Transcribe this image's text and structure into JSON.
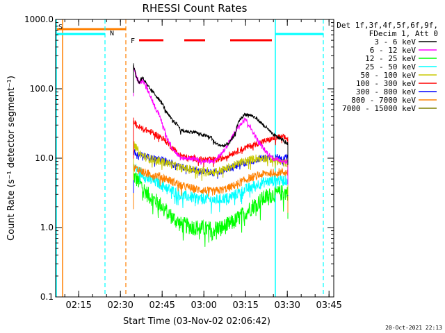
{
  "chart_data": {
    "type": "line",
    "title": "RHESSI Count Rates",
    "xlabel": "Start Time (03-Nov-02 02:06:42)",
    "ylabel": "Count Rate (s⁻¹ detector segment⁻¹)",
    "yscale": "log",
    "ylim": [
      0.1,
      1000
    ],
    "y_ticks": [
      "0.1",
      "1.0",
      "10.0",
      "100.0",
      "1000.0"
    ],
    "xlim_minutes": [
      0,
      100
    ],
    "x_ticks": [
      {
        "label": "02:15",
        "minute": 8.3
      },
      {
        "label": "02:30",
        "minute": 23.3
      },
      {
        "label": "02:45",
        "minute": 38.3
      },
      {
        "label": "03:00",
        "minute": 53.3
      },
      {
        "label": "03:15",
        "minute": 68.3
      },
      {
        "label": "03:30",
        "minute": 83.3
      },
      {
        "label": "03:45",
        "minute": 98.3
      }
    ],
    "legend": {
      "header": [
        "Det 1f,3f,4f,5f,6f,9f,",
        "FDecim 1, Att 0"
      ],
      "placement": "right"
    },
    "series": [
      {
        "name": "3 - 6 keV",
        "color": "#000000",
        "x": [
          28,
          29,
          30,
          31,
          32,
          33,
          35,
          38,
          40,
          42,
          44,
          45,
          48,
          50,
          52,
          54,
          56,
          57,
          58,
          60,
          62,
          64,
          66,
          68,
          70,
          72,
          74,
          76,
          78,
          80,
          82,
          83.5
        ],
        "values": [
          220,
          150,
          120,
          150,
          130,
          110,
          90,
          65,
          45,
          35,
          30,
          25,
          24,
          24,
          22,
          21,
          20,
          17,
          16,
          15,
          16,
          20,
          35,
          43,
          42,
          38,
          32,
          27,
          22,
          20,
          18,
          16
        ]
      },
      {
        "name": "6 - 12 keV",
        "color": "#ff00ff",
        "x": [
          28,
          29,
          30,
          31,
          32,
          33,
          35,
          38,
          40,
          42,
          44,
          45,
          48,
          50,
          52,
          54,
          56,
          57,
          58,
          60,
          62,
          64,
          66,
          68,
          70,
          72,
          74,
          76,
          78,
          80,
          82,
          83.5
        ],
        "values": [
          210,
          150,
          120,
          140,
          120,
          100,
          65,
          35,
          20,
          14,
          11,
          10,
          10,
          10,
          9,
          9,
          9,
          9,
          10,
          12,
          16,
          22,
          30,
          38,
          28,
          20,
          15,
          12,
          10,
          9.5,
          9,
          9
        ]
      },
      {
        "name": "12 - 25 keV",
        "color": "#00ff00",
        "x": [
          28,
          29,
          30,
          31,
          32,
          33,
          35,
          38,
          40,
          42,
          44,
          45,
          48,
          50,
          52,
          54,
          56,
          57,
          58,
          60,
          62,
          64,
          66,
          68,
          70,
          72,
          74,
          76,
          78,
          80,
          82,
          83.5
        ],
        "values": [
          5.5,
          5,
          4.5,
          4,
          3.5,
          3,
          2.6,
          2.1,
          1.7,
          1.4,
          1.2,
          1.1,
          1.05,
          1,
          1,
          0.95,
          0.95,
          0.95,
          1,
          1,
          1.1,
          1.2,
          1.4,
          1.6,
          1.9,
          2.2,
          2.5,
          2.8,
          3,
          3.1,
          3.2,
          3.2
        ]
      },
      {
        "name": "25 - 50 keV",
        "color": "#00ffff",
        "x": [
          28,
          29,
          30,
          31,
          32,
          33,
          35,
          38,
          40,
          42,
          44,
          45,
          48,
          50,
          52,
          54,
          56,
          57,
          58,
          60,
          62,
          64,
          66,
          68,
          70,
          72,
          74,
          76,
          78,
          80,
          82,
          83.5
        ],
        "values": [
          7.5,
          7,
          6.5,
          6,
          5.5,
          5,
          4.7,
          4.2,
          3.8,
          3.4,
          3.1,
          2.9,
          2.8,
          2.7,
          2.6,
          2.6,
          2.5,
          2.5,
          2.5,
          2.6,
          2.7,
          2.9,
          3.2,
          3.5,
          3.8,
          4.1,
          4.4,
          4.6,
          4.7,
          4.8,
          4.8,
          4.8
        ]
      },
      {
        "name": "50 - 100 keV",
        "color": "#c8c800",
        "x": [
          28,
          29,
          30,
          31,
          32,
          33,
          35,
          38,
          40,
          42,
          44,
          45,
          48,
          50,
          52,
          54,
          56,
          57,
          58,
          60,
          62,
          64,
          66,
          68,
          70,
          72,
          74,
          76,
          78,
          80,
          82,
          83.5
        ],
        "values": [
          16,
          14,
          12,
          11,
          10.5,
          10,
          9.5,
          9,
          8.5,
          8,
          7.5,
          7.2,
          7,
          6.8,
          6.6,
          6.5,
          6.4,
          6.4,
          6.5,
          6.8,
          7.2,
          7.8,
          8.5,
          9,
          9.5,
          10,
          10,
          10,
          9.5,
          9,
          8.5,
          8.5
        ]
      },
      {
        "name": "100 - 300 keV",
        "color": "#ff0000",
        "x": [
          28,
          29,
          30,
          31,
          32,
          33,
          35,
          38,
          40,
          42,
          44,
          45,
          48,
          50,
          52,
          54,
          56,
          57,
          58,
          60,
          62,
          64,
          66,
          68,
          70,
          72,
          74,
          76,
          78,
          80,
          82,
          83.5
        ],
        "values": [
          35,
          30,
          28,
          27,
          26,
          25,
          23,
          20,
          17,
          14,
          12,
          11,
          10,
          10,
          9.5,
          9.5,
          9.5,
          9.5,
          9.5,
          10,
          11,
          12,
          13,
          14,
          15,
          16,
          17,
          18,
          19,
          20,
          20,
          19
        ]
      },
      {
        "name": "300 - 800 keV",
        "color": "#0000ff",
        "x": [
          28,
          29,
          30,
          31,
          32,
          33,
          35,
          38,
          40,
          42,
          44,
          45,
          48,
          50,
          52,
          54,
          56,
          57,
          58,
          60,
          62,
          64,
          66,
          68,
          70,
          72,
          74,
          76,
          78,
          80,
          82,
          83.5
        ],
        "values": [
          12,
          11.5,
          11,
          11,
          10.8,
          10.5,
          10,
          9.5,
          9,
          8.5,
          8,
          7.5,
          7,
          6.8,
          6.5,
          6.3,
          6.2,
          6.2,
          6.3,
          6.5,
          7,
          7.5,
          8,
          8.5,
          9,
          9.5,
          10,
          10.2,
          10.3,
          10.3,
          10.2,
          10
        ]
      },
      {
        "name": "800 - 7000 keV",
        "color": "#ff8000",
        "x": [
          28,
          29,
          30,
          31,
          32,
          33,
          35,
          38,
          40,
          42,
          44,
          45,
          48,
          50,
          52,
          54,
          56,
          57,
          58,
          60,
          62,
          64,
          66,
          68,
          70,
          72,
          74,
          76,
          78,
          80,
          82,
          83.5
        ],
        "values": [
          7.5,
          7,
          6.8,
          6.5,
          6.2,
          6,
          5.8,
          5.4,
          5,
          4.6,
          4.3,
          4,
          3.8,
          3.6,
          3.5,
          3.4,
          3.3,
          3.3,
          3.4,
          3.5,
          3.7,
          4,
          4.4,
          4.8,
          5.2,
          5.5,
          5.8,
          6,
          6.2,
          6.3,
          6.3,
          6.2
        ]
      },
      {
        "name": "7000 - 15000 keV",
        "color": "#808000",
        "x": [],
        "values": []
      }
    ],
    "attenuator_markers": [
      {
        "label": "S",
        "color": "#ff8000"
      },
      {
        "label": "N",
        "color": "#00ffff"
      },
      {
        "label": "F",
        "color": "#ff0000"
      }
    ]
  },
  "footer": {
    "timestamp": "20-Oct-2021 22:13"
  }
}
